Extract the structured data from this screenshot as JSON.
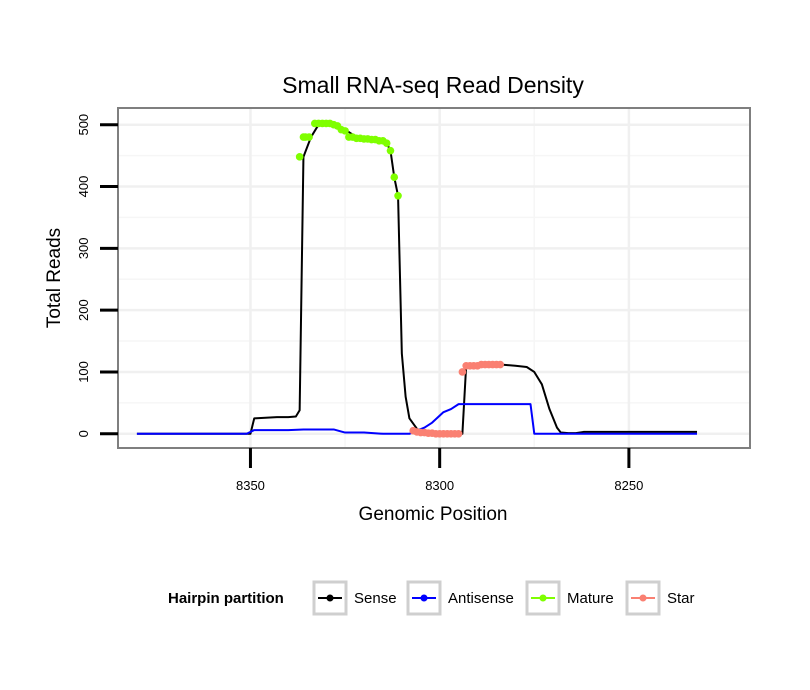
{
  "chart_data": {
    "type": "line",
    "title": "Small RNA-seq Read Density",
    "xlabel": "Genomic Position",
    "ylabel": "Total Reads",
    "xlim": [
      8385,
      8218
    ],
    "x_reversed": true,
    "ylim": [
      -23,
      527
    ],
    "x_ticks": [
      8350,
      8300,
      8250
    ],
    "y_ticks": [
      0,
      100,
      200,
      300,
      400,
      500
    ],
    "grid": true,
    "legend_position": "bottom",
    "legend_title": "Hairpin partition",
    "legend": [
      {
        "name": "Sense",
        "color": "#000000"
      },
      {
        "name": "Antisense",
        "color": "#0000ff"
      },
      {
        "name": "Mature",
        "color": "#7fff00"
      },
      {
        "name": "Star",
        "color": "#fa8072"
      }
    ],
    "series": [
      {
        "name": "Sense",
        "color": "#000000",
        "style": "line",
        "x": [
          8380,
          8351,
          8350,
          8349,
          8346,
          8343,
          8340,
          8338,
          8337,
          8336,
          8334,
          8332,
          8330,
          8328,
          8325,
          8322,
          8320,
          8318,
          8316,
          8314,
          8313,
          8312,
          8311,
          8310,
          8309,
          8308,
          8306,
          8304,
          8300,
          8296,
          8294,
          8293,
          8292,
          8284,
          8280,
          8277,
          8275,
          8273,
          8271,
          8269,
          8268,
          8266,
          8264,
          8262,
          8256,
          8232
        ],
        "y": [
          0,
          0,
          0,
          25,
          26,
          27,
          27,
          28,
          38,
          448,
          480,
          500,
          502,
          500,
          492,
          480,
          477,
          476,
          474,
          470,
          458,
          415,
          385,
          130,
          60,
          25,
          8,
          2,
          0,
          0,
          0,
          110,
          112,
          112,
          110,
          108,
          100,
          80,
          40,
          10,
          2,
          1,
          1,
          3,
          3,
          3
        ]
      },
      {
        "name": "Antisense",
        "color": "#0000ff",
        "style": "line",
        "x": [
          8380,
          8351,
          8349,
          8340,
          8336,
          8328,
          8325,
          8320,
          8315,
          8308,
          8304,
          8302,
          8299,
          8297,
          8295,
          8293,
          8290,
          8284,
          8280,
          8276,
          8275,
          8269,
          8256,
          8232
        ],
        "y": [
          0,
          0,
          6,
          6,
          7,
          7,
          2,
          2,
          0,
          0,
          10,
          18,
          35,
          40,
          48,
          48,
          48,
          48,
          48,
          48,
          0,
          0,
          0,
          0
        ]
      },
      {
        "name": "Mature",
        "color": "#7fff00",
        "style": "points",
        "x": [
          8337,
          8336,
          8335.5,
          8334.5,
          8333,
          8332,
          8331,
          8330,
          8329,
          8328,
          8327,
          8326,
          8325,
          8324,
          8323,
          8322,
          8321,
          8320,
          8319,
          8318,
          8317,
          8316,
          8315,
          8314,
          8313,
          8312,
          8311
        ],
        "y": [
          448,
          480,
          480,
          480,
          502,
          502,
          502,
          502,
          502,
          500,
          498,
          492,
          490,
          480,
          480,
          478,
          478,
          477,
          477,
          476,
          476,
          474,
          474,
          470,
          458,
          415,
          385
        ]
      },
      {
        "name": "Star",
        "color": "#fa8072",
        "style": "points",
        "x": [
          8307,
          8306,
          8305,
          8304,
          8303,
          8302,
          8301,
          8300,
          8299,
          8298,
          8297,
          8296,
          8295,
          8294,
          8293,
          8292,
          8291,
          8290,
          8289,
          8288,
          8287,
          8286,
          8285,
          8284
        ],
        "y": [
          5,
          3,
          2,
          2,
          1,
          1,
          0,
          0,
          0,
          0,
          0,
          0,
          0,
          100,
          110,
          110,
          110,
          110,
          112,
          112,
          112,
          112,
          112,
          112
        ]
      }
    ]
  }
}
